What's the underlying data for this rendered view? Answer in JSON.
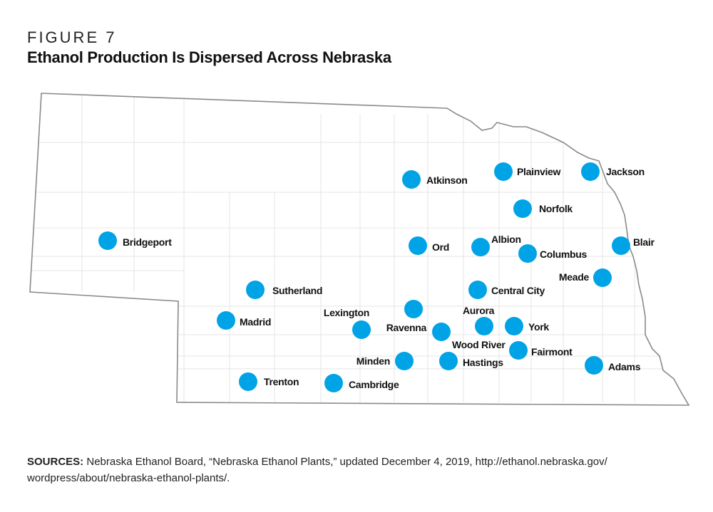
{
  "figure_label": "FIGURE 7",
  "title": "Ethanol Production Is Dispersed Across Nebraska",
  "colors": {
    "plant_marker": "#00A3E6",
    "state_outline": "#8a8a8a",
    "county_lines": "#e2e2e2"
  },
  "plants": [
    {
      "name": "Atkinson"
    },
    {
      "name": "Plainview"
    },
    {
      "name": "Jackson"
    },
    {
      "name": "Norfolk"
    },
    {
      "name": "Bridgeport"
    },
    {
      "name": "Ord"
    },
    {
      "name": "Albion"
    },
    {
      "name": "Columbus"
    },
    {
      "name": "Blair"
    },
    {
      "name": "Meade"
    },
    {
      "name": "Sutherland"
    },
    {
      "name": "Central City"
    },
    {
      "name": "Madrid"
    },
    {
      "name": "Lexington"
    },
    {
      "name": "Ravenna"
    },
    {
      "name": "Aurora"
    },
    {
      "name": "Wood River"
    },
    {
      "name": "York"
    },
    {
      "name": "Fairmont"
    },
    {
      "name": "Minden"
    },
    {
      "name": "Hastings"
    },
    {
      "name": "Adams"
    },
    {
      "name": "Trenton"
    },
    {
      "name": "Cambridge"
    }
  ],
  "sources": {
    "label": "SOURCES:",
    "text": " Nebraska Ethanol Board, “Nebraska Ethanol Plants,” updated December 4, 2019, http://ethanol.nebraska.gov/ wordpress/about/nebraska-ethanol-plants/."
  }
}
